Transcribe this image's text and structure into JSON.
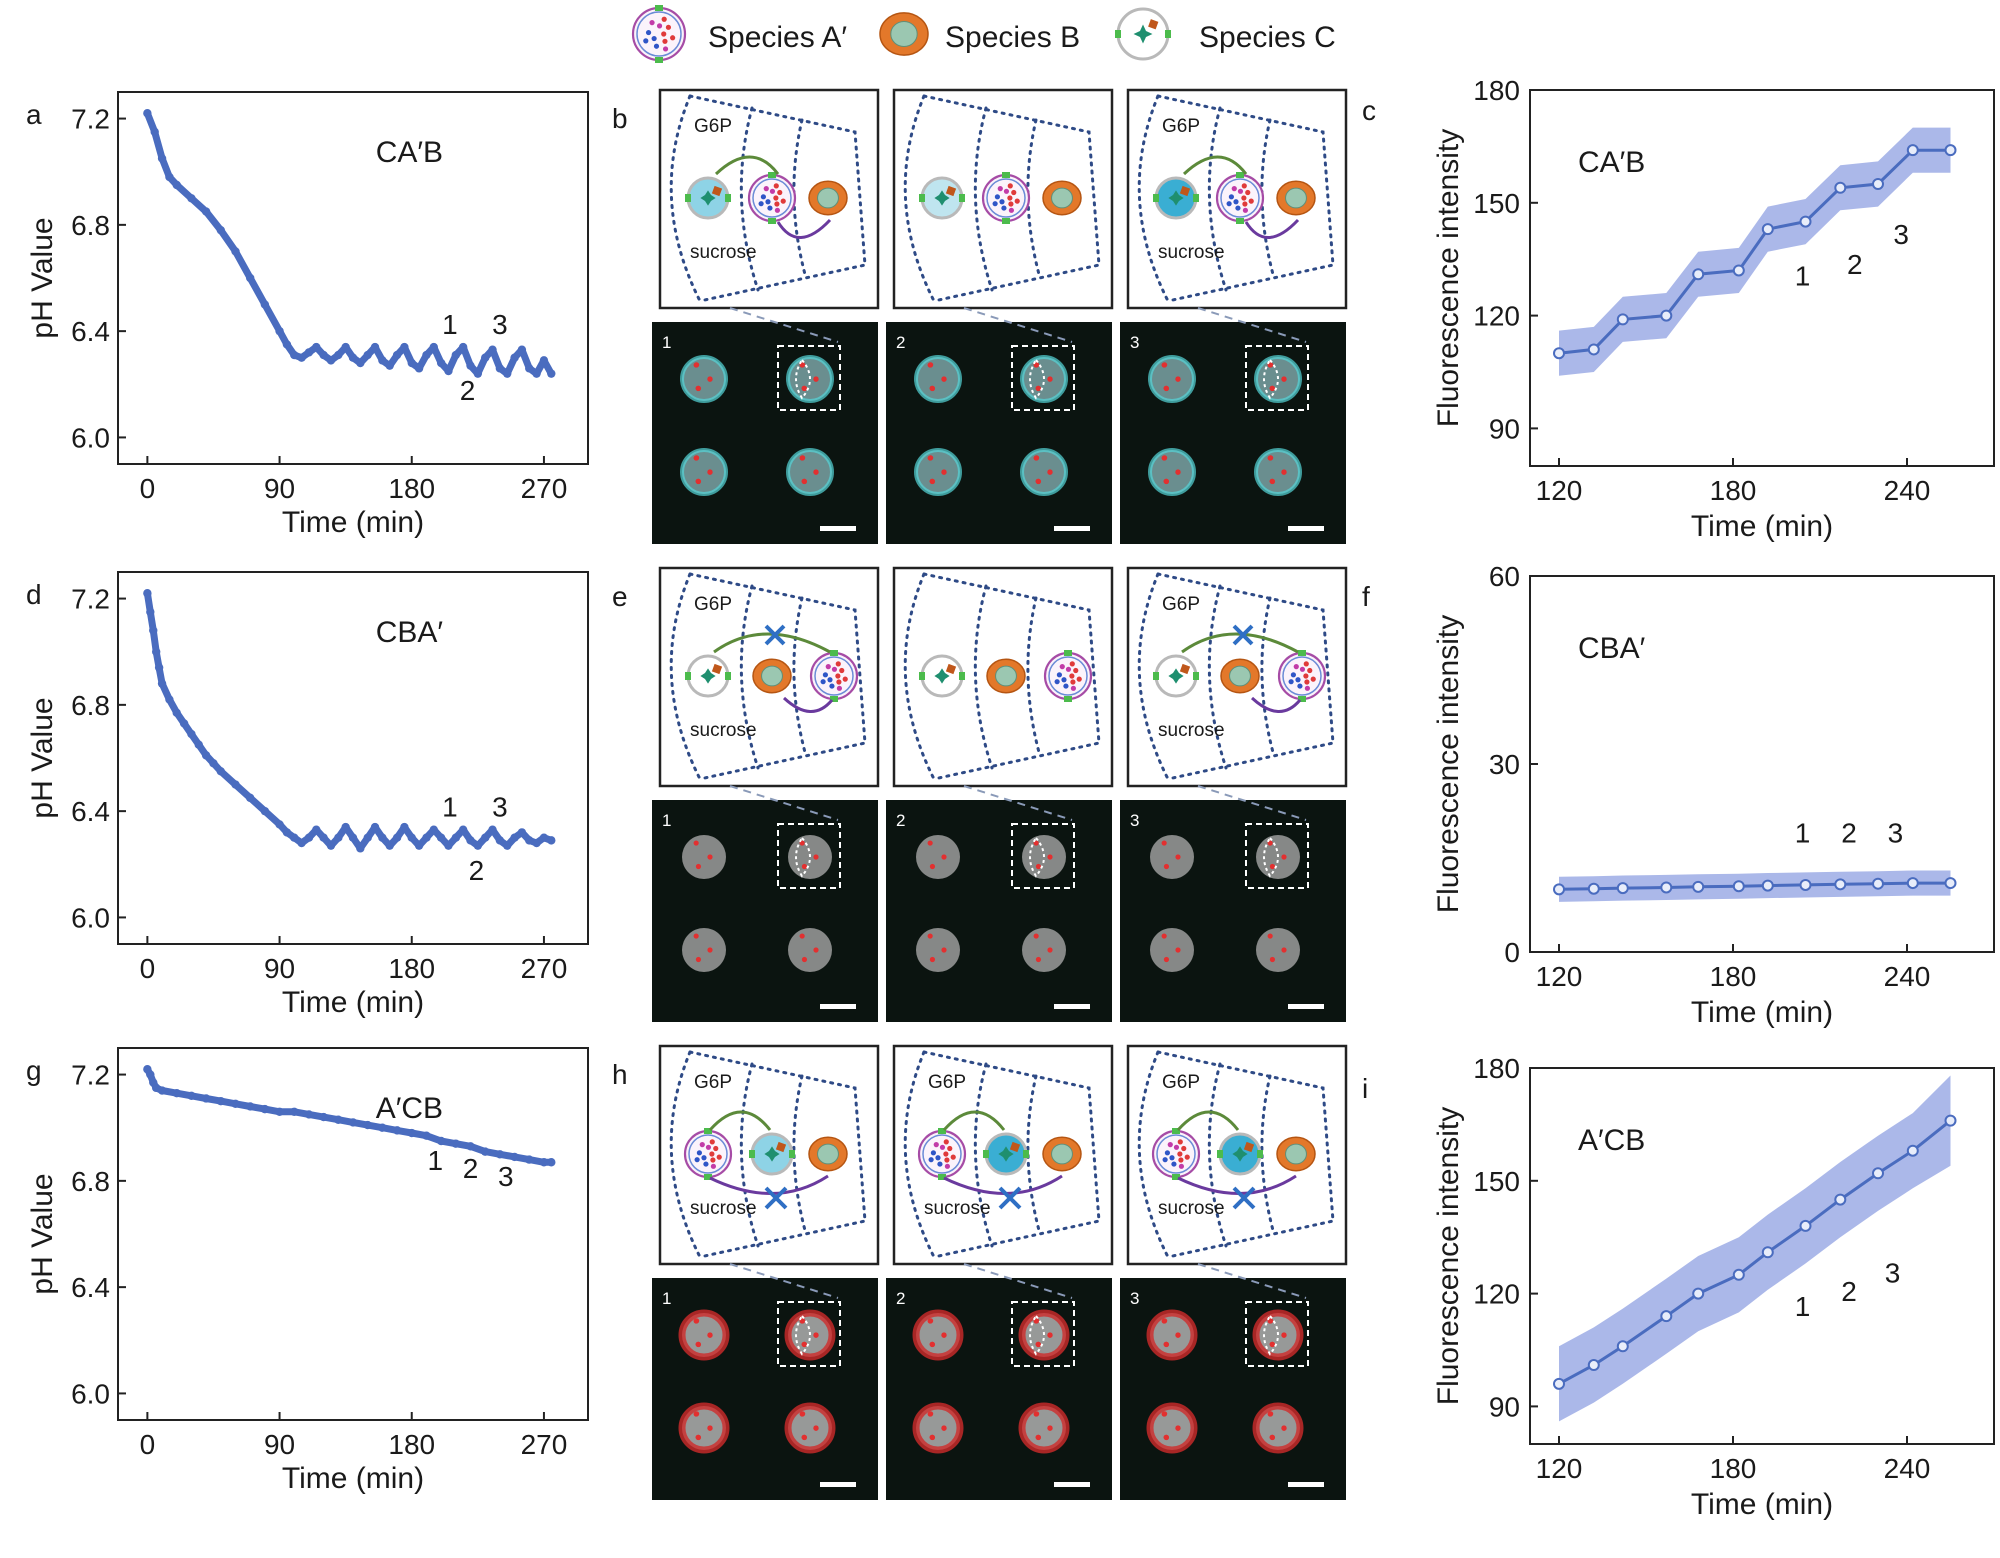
{
  "legend": [
    {
      "label": "Species A′",
      "icon": "species-a-prime-icon"
    },
    {
      "label": "Species B",
      "icon": "species-b-icon"
    },
    {
      "label": "Species C",
      "icon": "species-c-icon"
    }
  ],
  "schematic_labels": {
    "g6p": "G6P",
    "sucrose": "sucrose"
  },
  "rows": [
    {
      "ph_panel_letter": "a",
      "schematic_panel_letter": "b",
      "fluor_panel_letter": "c",
      "frames": [
        {
          "frame": "1",
          "pathway": "active",
          "c_fill": "#8ed3e6"
        },
        {
          "frame": "2",
          "pathway": "none",
          "c_fill": "#bfe5ef"
        },
        {
          "frame": "3",
          "pathway": "active",
          "c_fill": "#3aaed3"
        }
      ],
      "micro_style": "cyan",
      "c_position": "left"
    },
    {
      "ph_panel_letter": "d",
      "schematic_panel_letter": "e",
      "fluor_panel_letter": "f",
      "frames": [
        {
          "frame": "1",
          "pathway": "blocked",
          "c_fill": "#ffffff"
        },
        {
          "frame": "2",
          "pathway": "none",
          "c_fill": "#ffffff"
        },
        {
          "frame": "3",
          "pathway": "blocked",
          "c_fill": "#ffffff"
        }
      ],
      "micro_style": "gray",
      "c_position": "left"
    },
    {
      "ph_panel_letter": "g",
      "schematic_panel_letter": "h",
      "fluor_panel_letter": "i",
      "frames": [
        {
          "frame": "1",
          "pathway": "partial",
          "c_fill": "#8ed3e6"
        },
        {
          "frame": "2",
          "pathway": "partial",
          "c_fill": "#3aaed3"
        },
        {
          "frame": "3",
          "pathway": "partial",
          "c_fill": "#3aaed3"
        }
      ],
      "micro_style": "red",
      "c_position": "middle"
    }
  ],
  "chart_data": [
    {
      "panel": "a",
      "type": "scatter",
      "title": "CA′B",
      "xlabel": "Time (min)",
      "ylabel": "pH Value",
      "xlim": [
        -20,
        300
      ],
      "ylim": [
        5.9,
        7.3
      ],
      "xticks": [
        0,
        90,
        180,
        270
      ],
      "yticks": [
        6.0,
        6.4,
        6.8,
        7.2
      ],
      "yticklabels": [
        "6.0",
        "6.4",
        "6.8",
        "7.2"
      ],
      "color": "#4a6cbf",
      "series": [
        {
          "x": [
            0,
            5,
            10,
            15,
            20,
            30,
            40,
            50,
            60,
            70,
            80,
            90,
            95,
            100,
            105,
            110,
            115,
            120,
            125,
            130,
            135,
            140,
            145,
            150,
            155,
            160,
            165,
            170,
            175,
            180,
            185,
            190,
            195,
            200,
            205,
            210,
            215,
            220,
            225,
            230,
            235,
            240,
            245,
            250,
            255,
            260,
            265,
            270,
            275
          ],
          "y": [
            7.22,
            7.15,
            7.05,
            6.98,
            6.95,
            6.9,
            6.85,
            6.78,
            6.7,
            6.6,
            6.5,
            6.4,
            6.35,
            6.31,
            6.3,
            6.32,
            6.34,
            6.31,
            6.29,
            6.31,
            6.34,
            6.3,
            6.28,
            6.31,
            6.34,
            6.29,
            6.27,
            6.31,
            6.34,
            6.28,
            6.26,
            6.31,
            6.34,
            6.28,
            6.25,
            6.31,
            6.34,
            6.27,
            6.24,
            6.3,
            6.33,
            6.26,
            6.24,
            6.3,
            6.33,
            6.26,
            6.24,
            6.29,
            6.24
          ]
        }
      ],
      "annotations": [
        {
          "text": "1",
          "x": 206,
          "y": 6.39
        },
        {
          "text": "3",
          "x": 240,
          "y": 6.39
        },
        {
          "text": "2",
          "x": 218,
          "y": 6.14
        }
      ]
    },
    {
      "panel": "d",
      "type": "scatter",
      "title": "CBA′",
      "xlabel": "Time (min)",
      "ylabel": "pH Value",
      "xlim": [
        -20,
        300
      ],
      "ylim": [
        5.9,
        7.3
      ],
      "xticks": [
        0,
        90,
        180,
        270
      ],
      "yticks": [
        6.0,
        6.4,
        6.8,
        7.2
      ],
      "yticklabels": [
        "6.0",
        "6.4",
        "6.8",
        "7.2"
      ],
      "color": "#4a6cbf",
      "series": [
        {
          "x": [
            0,
            2,
            4,
            6,
            8,
            10,
            15,
            20,
            25,
            30,
            35,
            40,
            45,
            50,
            60,
            70,
            80,
            90,
            95,
            100,
            105,
            110,
            115,
            120,
            125,
            130,
            135,
            140,
            145,
            150,
            155,
            160,
            165,
            170,
            175,
            180,
            185,
            190,
            195,
            200,
            205,
            210,
            215,
            220,
            225,
            230,
            235,
            240,
            245,
            250,
            255,
            260,
            265,
            270,
            275
          ],
          "y": [
            7.22,
            7.15,
            7.08,
            7.0,
            6.94,
            6.88,
            6.82,
            6.77,
            6.73,
            6.69,
            6.65,
            6.61,
            6.58,
            6.55,
            6.5,
            6.45,
            6.4,
            6.35,
            6.32,
            6.3,
            6.28,
            6.3,
            6.33,
            6.3,
            6.27,
            6.3,
            6.34,
            6.3,
            6.26,
            6.3,
            6.34,
            6.3,
            6.27,
            6.3,
            6.34,
            6.3,
            6.27,
            6.3,
            6.33,
            6.3,
            6.27,
            6.3,
            6.33,
            6.29,
            6.27,
            6.3,
            6.33,
            6.29,
            6.27,
            6.3,
            6.32,
            6.29,
            6.28,
            6.3,
            6.29
          ]
        }
      ],
      "annotations": [
        {
          "text": "1",
          "x": 206,
          "y": 6.38
        },
        {
          "text": "3",
          "x": 240,
          "y": 6.38
        },
        {
          "text": "2",
          "x": 224,
          "y": 6.14
        }
      ]
    },
    {
      "panel": "g",
      "type": "scatter",
      "title": "A′CB",
      "xlabel": "Time (min)",
      "ylabel": "pH Value",
      "xlim": [
        -20,
        300
      ],
      "ylim": [
        5.9,
        7.3
      ],
      "xticks": [
        0,
        90,
        180,
        270
      ],
      "yticks": [
        6.0,
        6.4,
        6.8,
        7.2
      ],
      "yticklabels": [
        "6.0",
        "6.4",
        "6.8",
        "7.2"
      ],
      "color": "#4a6cbf",
      "series": [
        {
          "x": [
            0,
            2,
            4,
            6,
            10,
            20,
            30,
            40,
            50,
            60,
            70,
            80,
            90,
            100,
            110,
            120,
            130,
            140,
            150,
            160,
            170,
            180,
            190,
            200,
            210,
            220,
            230,
            240,
            250,
            260,
            270,
            275
          ],
          "y": [
            7.22,
            7.2,
            7.17,
            7.15,
            7.14,
            7.13,
            7.12,
            7.11,
            7.1,
            7.09,
            7.08,
            7.07,
            7.06,
            7.06,
            7.05,
            7.04,
            7.03,
            7.02,
            7.01,
            7.0,
            6.99,
            6.98,
            6.97,
            6.95,
            6.94,
            6.93,
            6.91,
            6.9,
            6.89,
            6.88,
            6.87,
            6.87
          ]
        }
      ],
      "annotations": [
        {
          "text": "1",
          "x": 196,
          "y": 6.84
        },
        {
          "text": "2",
          "x": 220,
          "y": 6.81
        },
        {
          "text": "3",
          "x": 244,
          "y": 6.78
        }
      ]
    },
    {
      "panel": "c",
      "type": "line",
      "title": "CA′B",
      "xlabel": "Time (min)",
      "ylabel": "Fluorescence intensity",
      "xlim": [
        110,
        270
      ],
      "ylim": [
        80,
        180
      ],
      "xticks": [
        120,
        180,
        240
      ],
      "yticks": [
        90,
        120,
        150,
        180
      ],
      "color": "#4a6cbf",
      "band_color": "#8a9de0",
      "series": [
        {
          "x": [
            120,
            132,
            142,
            157,
            168,
            182,
            192,
            205,
            217,
            230,
            242,
            255
          ],
          "y": [
            110,
            111,
            119,
            120,
            131,
            132,
            143,
            145,
            154,
            155,
            164,
            164
          ],
          "band": [
            6,
            6,
            6,
            6,
            6,
            6,
            6,
            6,
            6,
            6,
            6,
            6
          ]
        }
      ],
      "annotations": [
        {
          "text": "1",
          "x": 204,
          "y": 128
        },
        {
          "text": "2",
          "x": 222,
          "y": 131
        },
        {
          "text": "3",
          "x": 238,
          "y": 139
        }
      ]
    },
    {
      "panel": "f",
      "type": "line",
      "title": "CBA′",
      "xlabel": "Time (min)",
      "ylabel": "Fluorescence intensity",
      "xlim": [
        110,
        270
      ],
      "ylim": [
        0,
        60
      ],
      "xticks": [
        120,
        180,
        240
      ],
      "yticks": [
        0,
        30,
        60
      ],
      "color": "#4a6cbf",
      "band_color": "#8a9de0",
      "series": [
        {
          "x": [
            120,
            132,
            142,
            157,
            168,
            182,
            192,
            205,
            217,
            230,
            242,
            255
          ],
          "y": [
            10.0,
            10.1,
            10.2,
            10.3,
            10.4,
            10.5,
            10.6,
            10.7,
            10.8,
            10.9,
            11.0,
            11.0
          ],
          "band": [
            2,
            2,
            2,
            2,
            2,
            2,
            2,
            2,
            2,
            2,
            2,
            2
          ]
        }
      ],
      "annotations": [
        {
          "text": "1",
          "x": 204,
          "y": 17.5
        },
        {
          "text": "2",
          "x": 220,
          "y": 17.5
        },
        {
          "text": "3",
          "x": 236,
          "y": 17.5
        }
      ]
    },
    {
      "panel": "i",
      "type": "line",
      "title": "A′CB",
      "xlabel": "Time (min)",
      "ylabel": "Fluorescence intensity",
      "xlim": [
        110,
        270
      ],
      "ylim": [
        80,
        180
      ],
      "xticks": [
        120,
        180,
        240
      ],
      "yticks": [
        90,
        120,
        150,
        180
      ],
      "color": "#4a6cbf",
      "band_color": "#8a9de0",
      "series": [
        {
          "x": [
            120,
            132,
            142,
            157,
            168,
            182,
            192,
            205,
            217,
            230,
            242,
            255
          ],
          "y": [
            96,
            101,
            106,
            114,
            120,
            125,
            131,
            138,
            145,
            152,
            158,
            166
          ],
          "band": [
            10,
            10,
            10,
            10,
            10,
            10,
            10,
            10,
            10,
            10,
            10,
            12
          ]
        }
      ],
      "annotations": [
        {
          "text": "1",
          "x": 204,
          "y": 114
        },
        {
          "text": "2",
          "x": 220,
          "y": 118
        },
        {
          "text": "3",
          "x": 235,
          "y": 123
        }
      ]
    }
  ]
}
